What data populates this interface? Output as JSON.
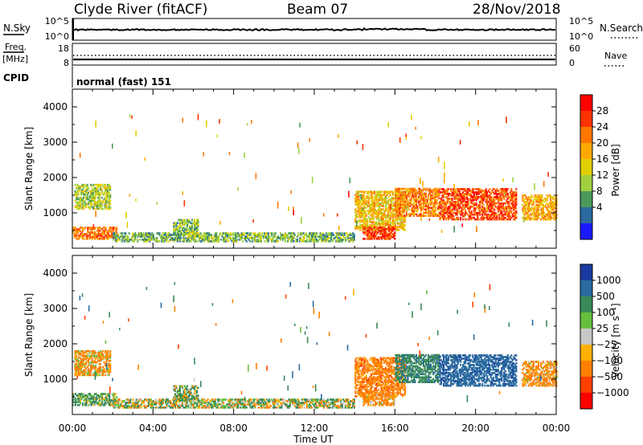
{
  "header": {
    "station": "Clyde River (fitACF)",
    "beam": "Beam 07",
    "date": "28/Nov/2018"
  },
  "top_panels": {
    "nsky_label": "N.Sky",
    "nsky_ticks": [
      "10^5",
      "10^0"
    ],
    "nsearch_label": "N.Search",
    "nsearch_ticks": [
      "10^5",
      "10^0"
    ],
    "freq_label": "Freq.",
    "freq_unit": "[MHz]",
    "freq_ticks": [
      "18",
      "8"
    ],
    "nave_label": "Nave",
    "nave_ticks": [
      "60",
      "0"
    ],
    "cpid_label": "CPID",
    "cpid_value": "normal (fast) 151"
  },
  "axes": {
    "x_label": "Time UT",
    "x_ticks": [
      "00:00",
      "04:00",
      "08:00",
      "12:00",
      "16:00",
      "20:00",
      "00:00"
    ],
    "y_label": "Slant Range [km]",
    "y_ticks": [
      "4000",
      "3000",
      "2000",
      "1000"
    ]
  },
  "power_bar": {
    "label": "Power [dB]",
    "ticks": [
      "28",
      "24",
      "20",
      "16",
      "12",
      "8",
      "4"
    ],
    "colors": [
      "#ff0000",
      "#ff3300",
      "#ff7700",
      "#ffaa00",
      "#e0d000",
      "#a0d040",
      "#4a9a5a",
      "#2a6aa0",
      "#1a1aff"
    ]
  },
  "velocity_bar": {
    "label": "Velocity [m s⁻¹]",
    "ticks": [
      "1000",
      "500",
      "100",
      "25",
      "−25",
      "−100",
      "−500",
      "−1000"
    ],
    "colors": [
      "#1a3aa0",
      "#2a6aa0",
      "#3a8a5a",
      "#66c040",
      "#c8c8c8",
      "#ffb000",
      "#ff8000",
      "#ff4000",
      "#ff0000"
    ]
  },
  "chart_data": {
    "type": "heatmap",
    "x_range_hours": [
      0,
      24
    ],
    "y_range_km": [
      0,
      4500
    ],
    "panels": [
      {
        "name": "Power",
        "unit": "dB",
        "regions": [
          {
            "t0": 0.1,
            "t1": 1.9,
            "r0": 1100,
            "r1": 1800,
            "value": 11
          },
          {
            "t0": 0.0,
            "t1": 2.2,
            "r0": 250,
            "r1": 600,
            "value": 22
          },
          {
            "t0": 2.0,
            "t1": 14.0,
            "r0": 180,
            "r1": 420,
            "value": 8
          },
          {
            "t0": 5.0,
            "t1": 6.2,
            "r0": 380,
            "r1": 800,
            "value": 9
          },
          {
            "t0": 14.0,
            "t1": 16.5,
            "r0": 500,
            "r1": 1600,
            "value": 16
          },
          {
            "t0": 14.4,
            "t1": 16.0,
            "r0": 250,
            "r1": 600,
            "value": 26
          },
          {
            "t0": 16.0,
            "t1": 18.2,
            "r0": 900,
            "r1": 1700,
            "value": 21
          },
          {
            "t0": 18.2,
            "t1": 22.0,
            "r0": 800,
            "r1": 1700,
            "value": 25
          },
          {
            "t0": 22.3,
            "t1": 24.0,
            "r0": 800,
            "r1": 1500,
            "value": 18
          }
        ]
      },
      {
        "name": "Velocity",
        "unit": "m s^-1",
        "regions": [
          {
            "t0": 0.1,
            "t1": 1.9,
            "r0": 1100,
            "r1": 1800,
            "value": -150
          },
          {
            "t0": 0.0,
            "t1": 2.2,
            "r0": 250,
            "r1": 600,
            "value": 150
          },
          {
            "t0": 2.0,
            "t1": 14.0,
            "r0": 180,
            "r1": 420,
            "value": 40
          },
          {
            "t0": 5.0,
            "t1": 6.2,
            "r0": 380,
            "r1": 800,
            "value": 90
          },
          {
            "t0": 14.0,
            "t1": 16.5,
            "r0": 500,
            "r1": 1600,
            "value": -300
          },
          {
            "t0": 14.4,
            "t1": 16.0,
            "r0": 250,
            "r1": 600,
            "value": -200
          },
          {
            "t0": 16.0,
            "t1": 18.2,
            "r0": 900,
            "r1": 1700,
            "value": 350
          },
          {
            "t0": 18.2,
            "t1": 22.0,
            "r0": 800,
            "r1": 1700,
            "value": 800
          },
          {
            "t0": 22.3,
            "t1": 24.0,
            "r0": 800,
            "r1": 1500,
            "value": -200
          }
        ]
      }
    ]
  }
}
